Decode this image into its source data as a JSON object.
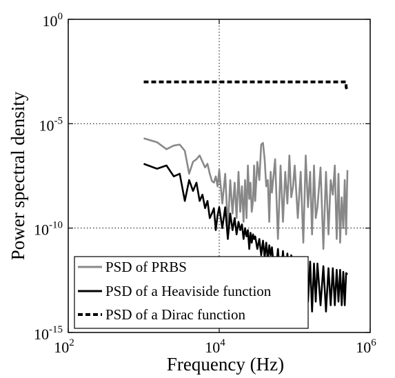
{
  "chart_data": {
    "type": "line",
    "xlabel": "Frequency (Hz)",
    "ylabel": "Power spectral density",
    "x_scale": "log",
    "y_scale": "log",
    "xlim": [
      100,
      1000000
    ],
    "ylim": [
      1e-15,
      1
    ],
    "x_ticks": [
      {
        "value": 100,
        "base": "10",
        "exp": "2"
      },
      {
        "value": 10000,
        "base": "10",
        "exp": "4"
      },
      {
        "value": 1000000,
        "base": "10",
        "exp": "6"
      }
    ],
    "y_ticks": [
      {
        "value": 1,
        "base": "10",
        "exp": "0"
      },
      {
        "value": 1e-05,
        "base": "10",
        "exp": "-5"
      },
      {
        "value": 1e-10,
        "base": "10",
        "exp": "-10"
      },
      {
        "value": 1e-15,
        "base": "10",
        "exp": "-15"
      }
    ],
    "grid": "dotted lines at major ticks",
    "legend_position": "bottom-left",
    "series": [
      {
        "name": "PSD of PRBS",
        "color": "#888888",
        "style": "solid",
        "x": [
          1000,
          1500,
          2000,
          2500,
          3000,
          3500,
          4000,
          4500,
          5000,
          5500,
          6000,
          6500,
          7000,
          7500,
          8000,
          8500,
          9000,
          9500,
          10000,
          11000,
          12000,
          13000,
          14000,
          15000,
          16000,
          17000,
          18000,
          19000,
          20000,
          21000,
          22000,
          23000,
          24000,
          25000,
          26000,
          27000,
          28000,
          29000,
          30000,
          32000,
          34000,
          36000,
          38000,
          40000,
          42000,
          44000,
          46000,
          48000,
          50000,
          55000,
          60000,
          65000,
          70000,
          75000,
          80000,
          85000,
          90000,
          95000,
          100000,
          110000,
          120000,
          130000,
          140000,
          150000,
          160000,
          170000,
          180000,
          190000,
          200000,
          220000,
          240000,
          260000,
          280000,
          300000,
          320000,
          340000,
          360000,
          380000,
          400000,
          420000,
          440000,
          460000,
          480000,
          500000
        ],
        "y": [
          2e-06,
          1.3e-06,
          6e-07,
          9e-07,
          1e-06,
          5e-07,
          4e-08,
          1.5e-07,
          2e-07,
          3e-07,
          1.5e-07,
          8e-08,
          1.2e-07,
          4e-08,
          1.8e-08,
          1.5e-08,
          3e-08,
          1e-08,
          6e-08,
          1.5e-09,
          4e-08,
          1e-10,
          2e-08,
          5e-10,
          1.5e-08,
          3e-10,
          5e-08,
          6e-10,
          1e-08,
          2e-10,
          2e-08,
          3e-10,
          1e-07,
          2.5e-09,
          1.5e-08,
          6e-10,
          2e-09,
          1e-07,
          2e-09,
          1.5e-07,
          2e-08,
          1e-06,
          1.2e-06,
          2e-07,
          1e-08,
          2e-08,
          2e-10,
          5e-08,
          5e-09,
          2e-07,
          3e-11,
          1e-07,
          2e-10,
          5e-08,
          1.5e-09,
          3e-07,
          3e-09,
          1e-08,
          1e-07,
          3e-10,
          5e-08,
          2e-11,
          3e-07,
          1e-09,
          5e-08,
          5e-11,
          1e-07,
          3e-10,
          1e-09,
          8e-08,
          1e-11,
          5e-08,
          5e-11,
          2e-08,
          4e-09,
          1e-07,
          3e-11,
          4e-08,
          2e-11,
          3e-09,
          1e-10,
          2e-08,
          5e-11,
          6e-08
        ]
      },
      {
        "name": "PSD of a Heaviside function",
        "color": "#000000",
        "style": "solid",
        "x": [
          1000,
          1500,
          2000,
          2500,
          3000,
          3500,
          4000,
          4500,
          5000,
          5500,
          6000,
          6500,
          7000,
          7500,
          8000,
          8500,
          9000,
          9500,
          10000,
          11000,
          12000,
          13000,
          14000,
          15000,
          16000,
          17000,
          18000,
          19000,
          20000,
          21000,
          22000,
          23000,
          24000,
          25000,
          26000,
          27000,
          28000,
          29000,
          30000,
          32000,
          34000,
          36000,
          38000,
          40000,
          42000,
          44000,
          46000,
          48000,
          50000,
          55000,
          60000,
          65000,
          70000,
          75000,
          80000,
          85000,
          90000,
          95000,
          100000,
          110000,
          120000,
          130000,
          140000,
          150000,
          160000,
          170000,
          180000,
          190000,
          200000,
          220000,
          240000,
          260000,
          280000,
          300000,
          320000,
          340000,
          360000,
          380000,
          400000,
          420000,
          440000,
          460000,
          480000,
          500000
        ],
        "y": [
          1.2e-07,
          7e-08,
          1e-07,
          3e-08,
          4e-08,
          2e-09,
          2e-08,
          6e-09,
          1.5e-08,
          2e-09,
          4e-09,
          9e-10,
          2e-09,
          3e-10,
          5e-10,
          9e-10,
          8e-11,
          4e-10,
          1e-09,
          1e-10,
          1e-09,
          3e-11,
          5e-10,
          8e-11,
          3e-10,
          5e-11,
          2e-10,
          8e-11,
          1.5e-10,
          3e-11,
          1e-10,
          4e-11,
          8e-11,
          1e-11,
          6e-11,
          2e-11,
          5e-11,
          3e-11,
          4e-11,
          1e-11,
          3e-11,
          5e-12,
          2.5e-11,
          4e-12,
          2e-11,
          3e-12,
          1.5e-11,
          5e-12,
          1.2e-11,
          3e-13,
          1e-11,
          2e-13,
          8e-12,
          3e-13,
          6e-12,
          2e-13,
          5e-12,
          2e-14,
          4e-12,
          5e-14,
          3e-12,
          1e-14,
          3e-12,
          3e-14,
          2.5e-12,
          1e-14,
          2e-12,
          3e-14,
          2e-12,
          2e-14,
          1.5e-12,
          1e-14,
          1.2e-12,
          2e-14,
          1.2e-12,
          2e-14,
          1e-12,
          3e-14,
          1e-12,
          2e-14,
          8e-13,
          2e-14,
          7e-13,
          6e-13
        ]
      },
      {
        "name": "PSD of a Dirac function",
        "color": "#000000",
        "style": "dashed",
        "x": [
          1000,
          480000,
          480000,
          500000
        ],
        "y": [
          0.001,
          0.001,
          0.00055,
          0.0004
        ]
      }
    ]
  }
}
